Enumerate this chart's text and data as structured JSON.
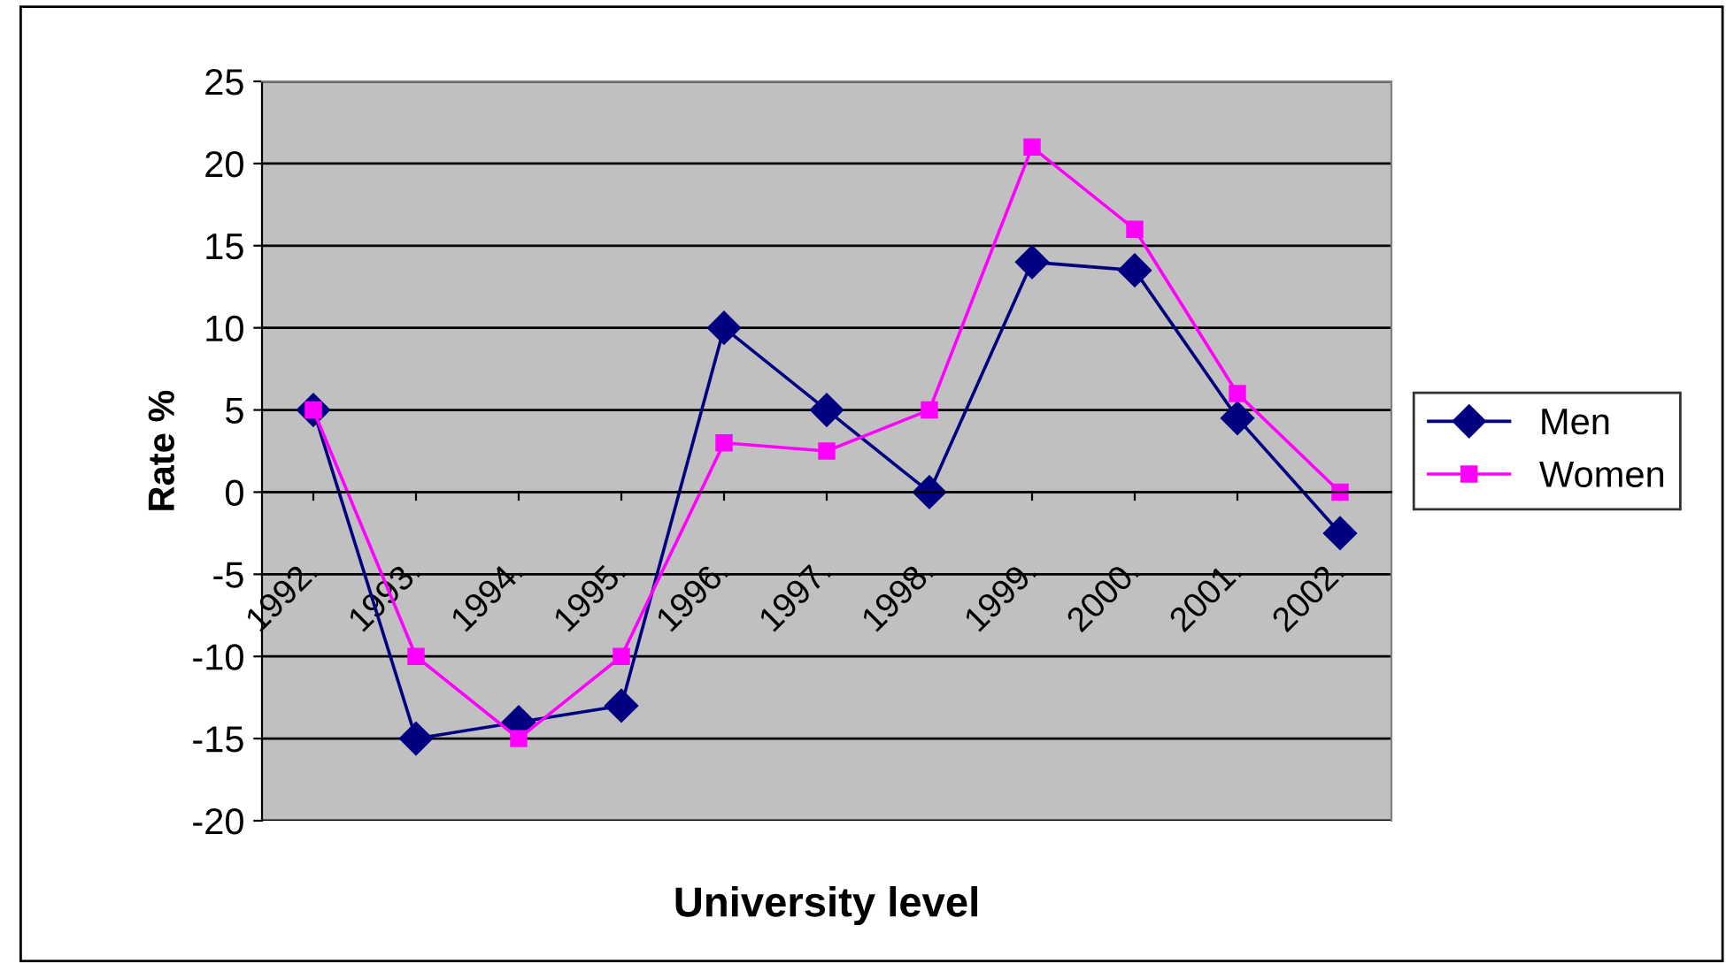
{
  "chart_data": {
    "type": "line",
    "xlabel": "University level",
    "ylabel": "Rate %",
    "categories": [
      "1992.",
      "1993.",
      "1994.",
      "1995.",
      "1996.",
      "1997.",
      "1998.",
      "1999.",
      "2000.",
      "2001.",
      "2002."
    ],
    "series": [
      {
        "name": "Men",
        "color": "#000080",
        "marker": "diamond",
        "values": [
          5,
          -15,
          -14,
          -13,
          10,
          5,
          0,
          14,
          13.5,
          4.5,
          -2.5
        ]
      },
      {
        "name": "Women",
        "color": "#ff00ff",
        "marker": "square",
        "values": [
          5,
          -10,
          -15,
          -10,
          3,
          2.5,
          5,
          21,
          16,
          6,
          0
        ]
      }
    ],
    "ylim": [
      -20,
      25
    ],
    "yticks": [
      -20,
      -15,
      -10,
      -5,
      0,
      5,
      10,
      15,
      20,
      25
    ],
    "grid": "y",
    "legend": "right",
    "line_style": "solid"
  }
}
